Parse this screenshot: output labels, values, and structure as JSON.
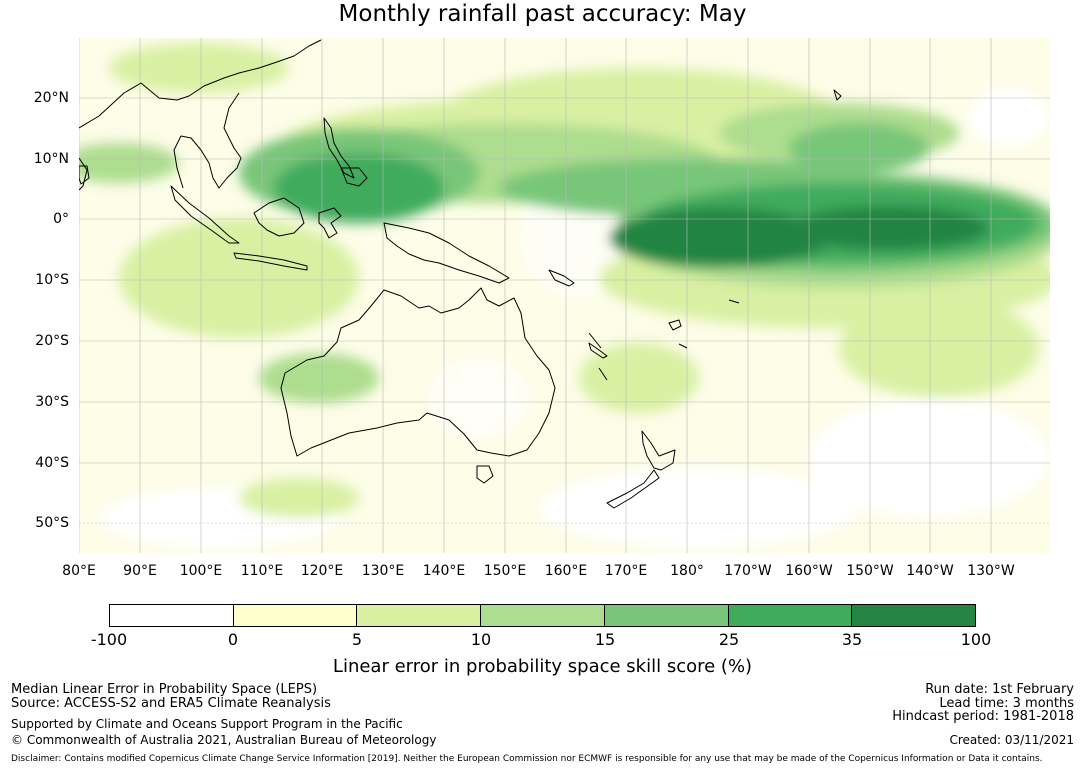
{
  "title": "Monthly rainfall past accuracy: May",
  "map": {
    "lat_labels": [
      "20°N",
      "10°N",
      "0°",
      "10°S",
      "20°S",
      "30°S",
      "40°S",
      "50°S"
    ],
    "lon_labels": [
      "80°E",
      "90°E",
      "100°E",
      "110°E",
      "120°E",
      "130°E",
      "140°E",
      "150°E",
      "160°E",
      "170°E",
      "180°",
      "170°W",
      "160°W",
      "150°W",
      "140°W",
      "130°W"
    ],
    "base_color": "#fdfde8"
  },
  "colorbar": {
    "ticks": [
      "-100",
      "0",
      "5",
      "10",
      "15",
      "25",
      "35",
      "100"
    ],
    "colors": [
      "#ffffff",
      "#ffffcc",
      "#d9f0a3",
      "#addd8e",
      "#78c679",
      "#41ab5d",
      "#238443"
    ],
    "label": "Linear error in probability space skill score (%)"
  },
  "footer": {
    "left": [
      "Median Linear Error in Probability Space (LEPS)",
      "Source: ACCESS-S2 and ERA5 Climate Reanalysis",
      "Supported by Climate and Oceans Support Program in the Pacific",
      "© Commonwealth of Australia 2021, Australian Bureau of Meteorology"
    ],
    "right": [
      "Run date: 1st February",
      "Lead time: 3 months",
      "Hindcast period: 1981-2018",
      "Created: 03/11/2021"
    ],
    "disclaimer": "Disclaimer: Contains modified Copernicus Climate Change Service Information [2019]. Neither the European Commission nor ECMWF is responsible for any use that may be made of the Copernicus Information or Data it contains."
  }
}
